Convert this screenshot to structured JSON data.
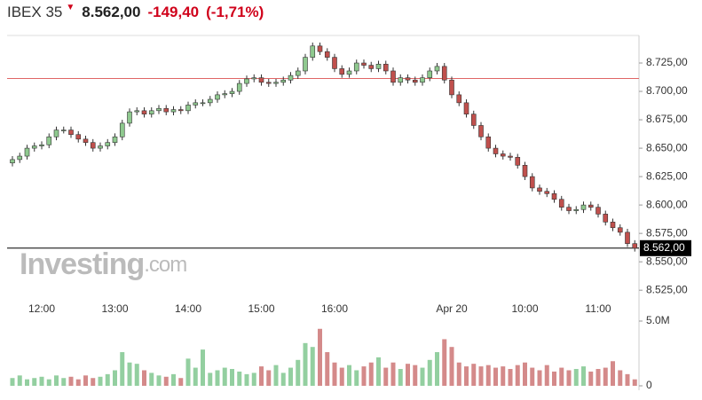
{
  "header": {
    "name": "IBEX 35",
    "price": "8.562,00",
    "change": "-149,40",
    "change_pct": "(-1,71%)"
  },
  "chart_data": {
    "type": "candlestick",
    "watermark": [
      "Investing",
      ".com"
    ],
    "categories": [
      null,
      null,
      null,
      null,
      "12:00",
      null,
      null,
      null,
      null,
      null,
      null,
      null,
      null,
      null,
      "13:00",
      null,
      null,
      null,
      null,
      null,
      null,
      null,
      null,
      null,
      "14:00",
      null,
      null,
      null,
      null,
      null,
      null,
      null,
      null,
      null,
      "15:00",
      null,
      null,
      null,
      null,
      null,
      null,
      null,
      null,
      null,
      "16:00",
      null,
      null,
      null,
      null,
      null,
      null,
      null,
      null,
      null,
      null,
      null,
      null,
      null,
      null,
      null,
      "Apr 20",
      null,
      null,
      null,
      null,
      null,
      null,
      null,
      null,
      null,
      "10:00",
      null,
      null,
      null,
      null,
      null,
      null,
      null,
      null,
      null,
      "11:00",
      null,
      null,
      null,
      null,
      null
    ],
    "open": [
      8637,
      8640,
      8643,
      8650,
      8652,
      8653,
      8660,
      8666,
      8666,
      8662,
      8658,
      8655,
      8650,
      8652,
      8655,
      8660,
      8672,
      8682,
      8683,
      8680,
      8683,
      8685,
      8682,
      8684,
      8683,
      8688,
      8690,
      8690,
      8693,
      8697,
      8698,
      8700,
      8707,
      8711,
      8712,
      8708,
      8707,
      8708,
      8710,
      8714,
      8718,
      8730,
      8740,
      8735,
      8730,
      8720,
      8715,
      8718,
      8725,
      8723,
      8720,
      8724,
      8718,
      8708,
      8712,
      8710,
      8708,
      8712,
      8718,
      8722,
      8710,
      8697,
      8690,
      8680,
      8670,
      8660,
      8650,
      8645,
      8643,
      8642,
      8635,
      8625,
      8615,
      8612,
      8610,
      8605,
      8598,
      8595,
      8596,
      8600,
      8598,
      8592,
      8585,
      8580,
      8576,
      8566
    ],
    "high": [
      8643,
      8646,
      8653,
      8655,
      8656,
      8663,
      8669,
      8669,
      8669,
      8665,
      8661,
      8658,
      8655,
      8658,
      8663,
      8675,
      8685,
      8686,
      8686,
      8686,
      8688,
      8688,
      8687,
      8687,
      8691,
      8693,
      8693,
      8696,
      8700,
      8701,
      8703,
      8710,
      8714,
      8715,
      8715,
      8711,
      8711,
      8713,
      8717,
      8721,
      8733,
      8743,
      8743,
      8738,
      8733,
      8723,
      8721,
      8728,
      8728,
      8726,
      8727,
      8727,
      8721,
      8715,
      8715,
      8713,
      8715,
      8721,
      8725,
      8725,
      8713,
      8700,
      8693,
      8683,
      8673,
      8663,
      8653,
      8648,
      8646,
      8645,
      8638,
      8628,
      8618,
      8615,
      8613,
      8608,
      8601,
      8599,
      8603,
      8603,
      8601,
      8595,
      8588,
      8583,
      8579,
      8569
    ],
    "low": [
      8634,
      8637,
      8640,
      8647,
      8649,
      8650,
      8657,
      8663,
      8659,
      8655,
      8652,
      8647,
      8647,
      8649,
      8652,
      8657,
      8669,
      8679,
      8677,
      8677,
      8680,
      8679,
      8679,
      8680,
      8680,
      8685,
      8687,
      8687,
      8690,
      8694,
      8695,
      8697,
      8704,
      8708,
      8705,
      8704,
      8704,
      8705,
      8707,
      8711,
      8715,
      8727,
      8732,
      8727,
      8717,
      8712,
      8712,
      8715,
      8720,
      8717,
      8717,
      8715,
      8705,
      8705,
      8707,
      8705,
      8705,
      8709,
      8715,
      8707,
      8694,
      8687,
      8677,
      8667,
      8657,
      8647,
      8642,
      8640,
      8639,
      8632,
      8622,
      8612,
      8609,
      8607,
      8602,
      8595,
      8592,
      8592,
      8593,
      8595,
      8589,
      8582,
      8577,
      8573,
      8563,
      8559
    ],
    "close": [
      8640,
      8643,
      8650,
      8652,
      8653,
      8660,
      8666,
      8666,
      8662,
      8658,
      8655,
      8650,
      8652,
      8655,
      8660,
      8672,
      8682,
      8683,
      8680,
      8683,
      8685,
      8682,
      8684,
      8683,
      8688,
      8690,
      8690,
      8693,
      8697,
      8698,
      8700,
      8707,
      8711,
      8712,
      8708,
      8707,
      8708,
      8710,
      8714,
      8718,
      8730,
      8740,
      8735,
      8730,
      8720,
      8715,
      8718,
      8725,
      8723,
      8720,
      8724,
      8718,
      8708,
      8712,
      8710,
      8708,
      8712,
      8718,
      8722,
      8710,
      8697,
      8690,
      8680,
      8670,
      8660,
      8650,
      8645,
      8643,
      8642,
      8635,
      8625,
      8615,
      8612,
      8610,
      8605,
      8598,
      8595,
      8596,
      8600,
      8598,
      8592,
      8585,
      8580,
      8576,
      8566,
      8562
    ],
    "volume": [
      600000,
      800000,
      500000,
      600000,
      700000,
      500000,
      800000,
      600000,
      700000,
      500000,
      800000,
      600000,
      700000,
      900000,
      1200000,
      2600000,
      1800000,
      1700000,
      1200000,
      1000000,
      800000,
      700000,
      900000,
      600000,
      2100000,
      1400000,
      2800000,
      1000000,
      1200000,
      1400000,
      1300000,
      1100000,
      900000,
      1000000,
      1500000,
      1200000,
      1600000,
      1000000,
      1400000,
      2000000,
      3300000,
      3000000,
      4400000,
      2600000,
      1800000,
      1400000,
      1600000,
      1200000,
      1500000,
      1800000,
      2200000,
      1400000,
      1800000,
      1300000,
      1700000,
      1600000,
      1400000,
      2000000,
      2600000,
      3600000,
      3000000,
      1800000,
      1500000,
      1700000,
      1500000,
      1600000,
      1400000,
      1500000,
      1300000,
      1600000,
      1800000,
      1400000,
      1200000,
      1600000,
      1100000,
      1400000,
      1200000,
      1300000,
      1500000,
      1100000,
      1300000,
      1400000,
      1900000,
      1200000,
      900000,
      500000
    ],
    "up_color": "#8fc98f",
    "down_color": "#c0504d",
    "wick_color": "#333333",
    "volume_up_color": "#93cfa0",
    "volume_down_color": "#d48a8a",
    "ylim": [
      8515,
      8750
    ],
    "yticks": [
      {
        "value": 8525,
        "label": "8.525,00"
      },
      {
        "value": 8550,
        "label": "8.550,00"
      },
      {
        "value": 8575,
        "label": "8.575,00"
      },
      {
        "value": 8600,
        "label": "8.600,00"
      },
      {
        "value": 8625,
        "label": "8.625,00"
      },
      {
        "value": 8650,
        "label": "8.650,00"
      },
      {
        "value": 8675,
        "label": "8.675,00"
      },
      {
        "value": 8700,
        "label": "8.700,00"
      },
      {
        "value": 8725,
        "label": "8.725,00"
      }
    ],
    "volume_ylim": [
      0,
      5000000
    ],
    "volume_yticks": [
      0,
      {
        "value": 5000000,
        "label": "5.0M"
      }
    ],
    "reference_lines": [
      {
        "value": 8711.4,
        "color": "#e06666"
      },
      {
        "value": 8562,
        "color": "#000000"
      }
    ]
  }
}
